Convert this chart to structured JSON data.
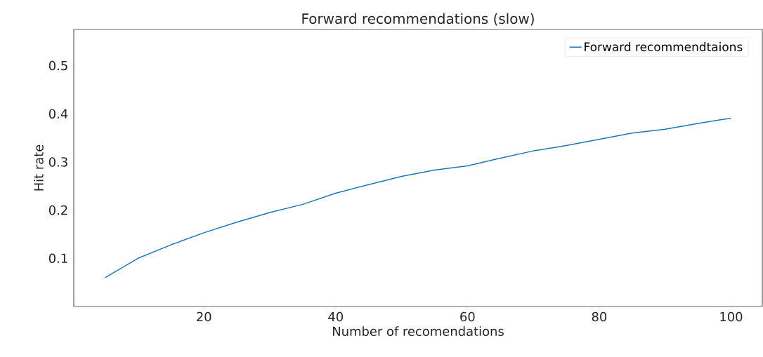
{
  "chart_data": {
    "type": "line",
    "title": "Forward recommendations (slow)",
    "xlabel": "Number of recomendations",
    "ylabel": "Hit rate",
    "x": [
      5,
      10,
      15,
      20,
      25,
      30,
      35,
      40,
      45,
      50,
      55,
      60,
      65,
      70,
      75,
      80,
      85,
      90,
      95,
      100
    ],
    "series": [
      {
        "name": "Forward recommendtaions",
        "color": "#1f77b4",
        "values": [
          0.06,
          0.1,
          0.128,
          0.153,
          0.175,
          0.195,
          0.212,
          0.235,
          0.253,
          0.27,
          0.283,
          0.292,
          0.308,
          0.323,
          0.334,
          0.347,
          0.36,
          0.368,
          0.38,
          0.391
        ]
      }
    ],
    "xlim": [
      0.25,
      104.75
    ],
    "ylim": [
      0,
      0.575
    ],
    "xticks": [
      20,
      40,
      60,
      80,
      100
    ],
    "yticks": [
      0.1,
      0.2,
      0.3,
      0.4,
      0.5
    ],
    "legend": "top right",
    "grid": false,
    "marker": "none",
    "line_style": "solid"
  }
}
